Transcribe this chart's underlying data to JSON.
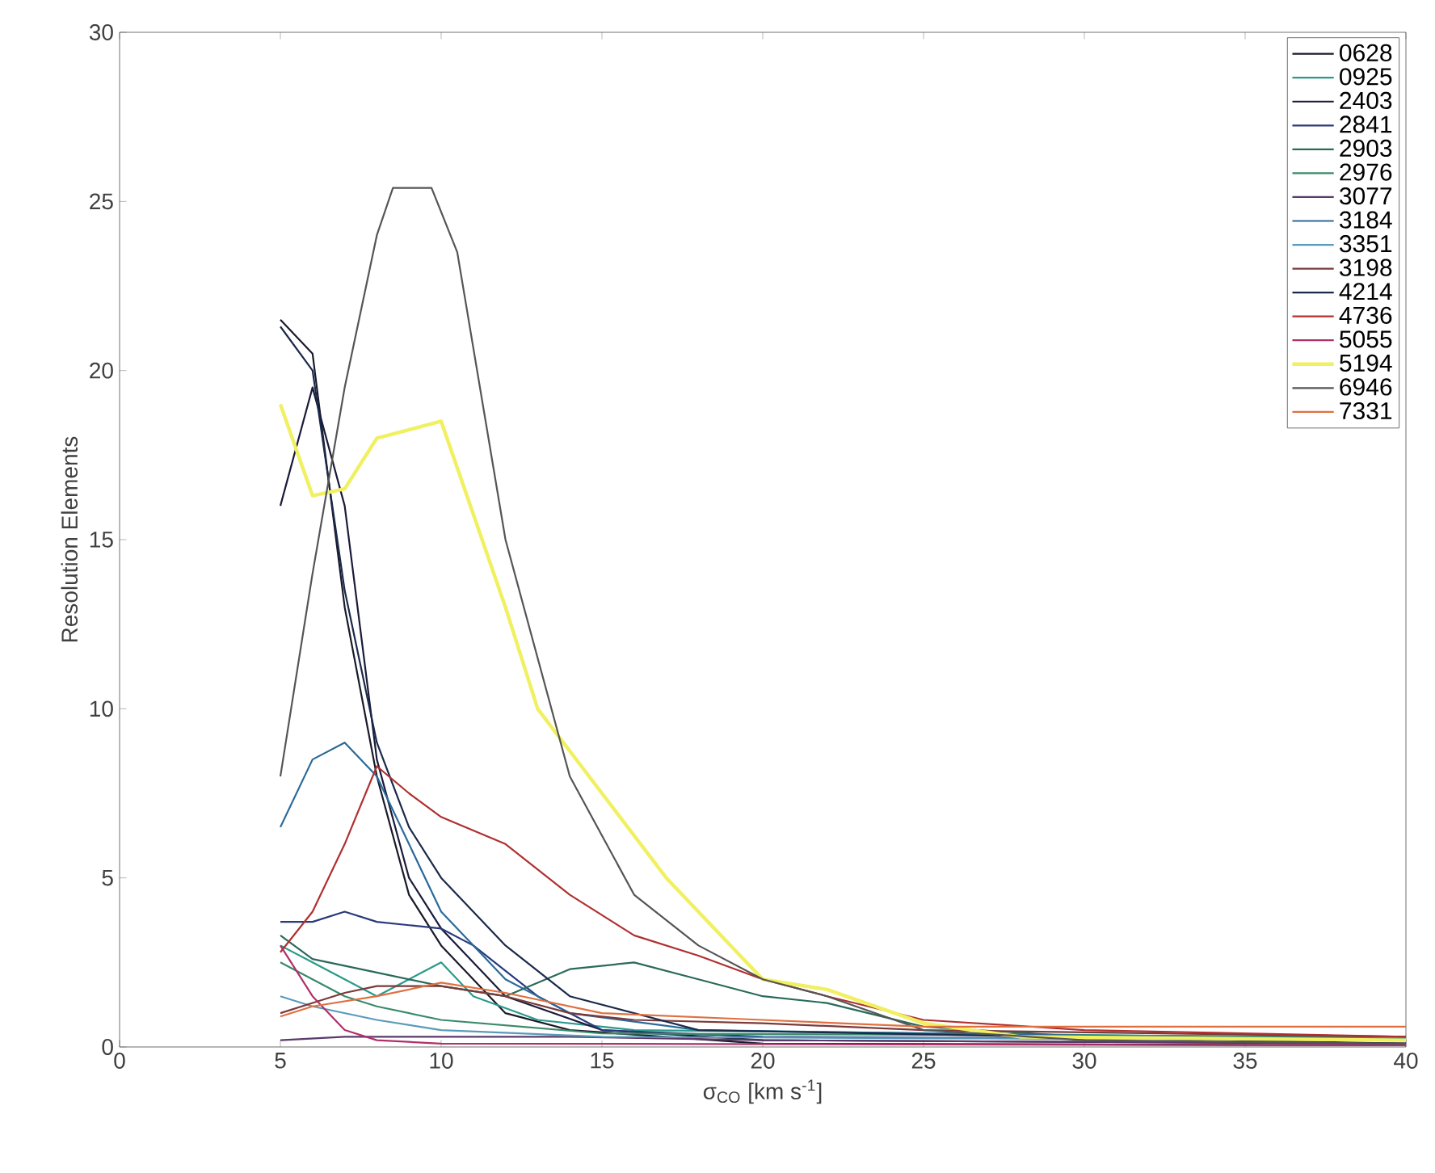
{
  "chart_data": {
    "type": "line",
    "xlabel": "σ$_{CO}$ [km s$^{-1}$]",
    "ylabel": "Resolution Elements",
    "xlim": [
      0,
      40
    ],
    "ylim": [
      0,
      30
    ],
    "xticks": [
      0,
      5,
      10,
      15,
      20,
      25,
      30,
      35,
      40
    ],
    "yticks": [
      0,
      5,
      10,
      15,
      20,
      25,
      30
    ],
    "grid": false,
    "legend": "top right",
    "marker": "none",
    "line_style": "solid",
    "series": [
      {
        "name": "0628",
        "color": "#1a1a2a",
        "x": [
          5,
          6,
          7,
          8,
          9,
          10,
          12,
          14,
          20,
          40
        ],
        "values": [
          21.5,
          20.5,
          13,
          8,
          4.5,
          3,
          1,
          0.5,
          0.1,
          0.05
        ]
      },
      {
        "name": "0925",
        "color": "#2a9a8a",
        "x": [
          5,
          6,
          7,
          8,
          10,
          11,
          13,
          16,
          40
        ],
        "values": [
          3,
          2.5,
          2,
          1.5,
          2.5,
          1.5,
          0.8,
          0.5,
          0.25
        ]
      },
      {
        "name": "2403",
        "color": "#1a1a3a",
        "x": [
          5,
          6,
          7,
          8,
          9,
          10,
          12,
          15,
          20,
          40
        ],
        "values": [
          16,
          19.5,
          16,
          8.5,
          5,
          3.5,
          1.5,
          0.5,
          0.2,
          0.1
        ]
      },
      {
        "name": "2841",
        "color": "#2a3a7a",
        "x": [
          5,
          6,
          7,
          8,
          9,
          10,
          11,
          13,
          15,
          20,
          40
        ],
        "values": [
          3.7,
          3.7,
          4,
          3.7,
          3.6,
          3.5,
          3,
          1.5,
          0.5,
          0.3,
          0.2
        ]
      },
      {
        "name": "2903",
        "color": "#2a6a5a",
        "x": [
          5,
          6,
          8,
          10,
          12,
          14,
          16,
          18,
          20,
          22,
          25,
          30,
          40
        ],
        "values": [
          3.3,
          2.6,
          2.2,
          1.8,
          1.5,
          2.3,
          2.5,
          2,
          1.5,
          1.3,
          0.6,
          0.3,
          0.2
        ]
      },
      {
        "name": "2976",
        "color": "#3a8a6a",
        "x": [
          5,
          6,
          7,
          8,
          10,
          15,
          40
        ],
        "values": [
          2.5,
          2,
          1.5,
          1.2,
          0.8,
          0.4,
          0.3
        ]
      },
      {
        "name": "3077",
        "color": "#5a3a6a",
        "x": [
          5,
          7,
          10,
          14,
          20,
          40
        ],
        "values": [
          0.2,
          0.3,
          0.3,
          0.3,
          0.2,
          0.1
        ]
      },
      {
        "name": "3184",
        "color": "#2a6a9a",
        "x": [
          5,
          6,
          7,
          8,
          9,
          10,
          12,
          14,
          18,
          40
        ],
        "values": [
          6.5,
          8.5,
          9,
          8,
          6,
          4,
          2,
          1,
          0.5,
          0.2
        ]
      },
      {
        "name": "3351",
        "color": "#5a9aba",
        "x": [
          5,
          6,
          8,
          10,
          15,
          40
        ],
        "values": [
          1.5,
          1.2,
          0.8,
          0.5,
          0.3,
          0.2
        ]
      },
      {
        "name": "3198",
        "color": "#7a3a3a",
        "x": [
          5,
          6,
          7,
          8,
          10,
          12,
          14,
          16,
          20,
          25,
          40
        ],
        "values": [
          1,
          1.3,
          1.6,
          1.8,
          1.8,
          1.5,
          1,
          0.8,
          0.7,
          0.5,
          0.3
        ]
      },
      {
        "name": "4214",
        "color": "#1a2a4a",
        "x": [
          5,
          6,
          7,
          8,
          9,
          10,
          12,
          14,
          18,
          40
        ],
        "values": [
          21.3,
          20,
          13.5,
          9,
          6.5,
          5,
          3,
          1.5,
          0.5,
          0.1
        ]
      },
      {
        "name": "4736",
        "color": "#b03030",
        "x": [
          5,
          6,
          7,
          8,
          9,
          10,
          12,
          14,
          16,
          18,
          20,
          22,
          25,
          30,
          40
        ],
        "values": [
          2.8,
          4,
          6,
          8.3,
          7.5,
          6.8,
          6,
          4.5,
          3.3,
          2.7,
          2,
          1.5,
          0.8,
          0.5,
          0.3
        ]
      },
      {
        "name": "5055",
        "color": "#b0306a",
        "x": [
          5,
          6,
          7,
          8,
          10,
          40
        ],
        "values": [
          3,
          1.5,
          0.5,
          0.2,
          0.1,
          0.05
        ]
      },
      {
        "name": "5194",
        "color": "#f0f060",
        "x": [
          5,
          6,
          7,
          8,
          10,
          12,
          13,
          15,
          17,
          19,
          20,
          22,
          25,
          28,
          40
        ],
        "values": [
          19,
          16.3,
          16.5,
          18,
          18.5,
          13,
          10,
          7.5,
          5,
          3,
          2,
          1.7,
          0.7,
          0.3,
          0.2
        ]
      },
      {
        "name": "6946",
        "color": "#555555",
        "x": [
          5,
          6,
          7,
          8,
          8.5,
          9.7,
          10.5,
          12,
          14,
          16,
          18,
          20,
          22,
          25,
          30,
          40
        ],
        "values": [
          8,
          14,
          19.5,
          24,
          25.4,
          25.4,
          23.5,
          15,
          8,
          4.5,
          3,
          2,
          1.5,
          0.5,
          0.2,
          0.1
        ]
      },
      {
        "name": "7331",
        "color": "#e07040",
        "x": [
          5,
          6,
          8,
          10,
          12,
          15,
          20,
          25,
          30,
          35,
          40
        ],
        "values": [
          0.9,
          1.2,
          1.5,
          1.9,
          1.6,
          1,
          0.8,
          0.6,
          0.6,
          0.6,
          0.6
        ]
      }
    ]
  }
}
